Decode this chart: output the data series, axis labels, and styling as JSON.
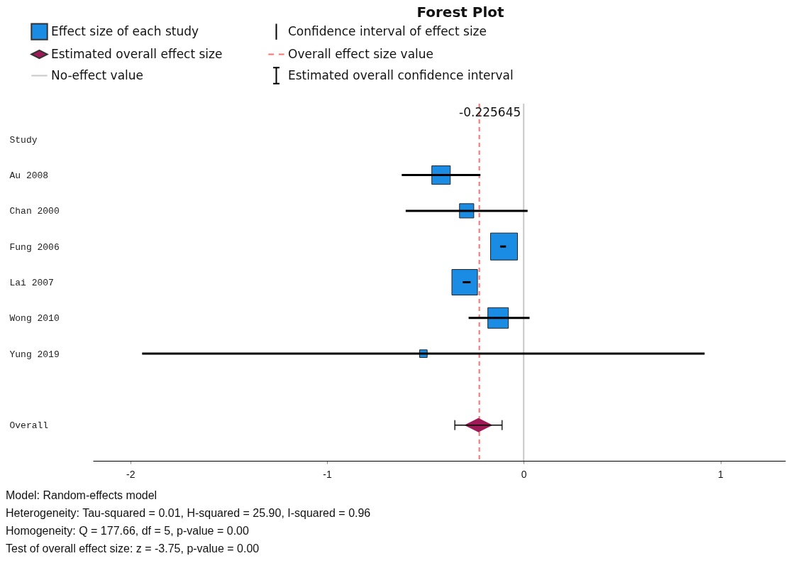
{
  "chart_data": {
    "type": "bubble",
    "title": "Forest Plot",
    "orientation": "horizontal",
    "ylabel": "Study",
    "categories": [
      "Au 2008",
      "Chan 2000",
      "Fung 2006",
      "Lai 2007",
      "Wong 2010",
      "Yung 2019",
      null,
      "Overall"
    ],
    "series": [
      {
        "name": "Effect size of each study",
        "color": "#1a8ce3",
        "marker": "square",
        "values": [
          -0.42,
          -0.29,
          -0.1,
          -0.3,
          -0.13,
          -0.51,
          null,
          null
        ],
        "errors": [
          [
            -0.62,
            -0.22
          ],
          [
            -0.6,
            0.02
          ],
          [
            -0.12,
            -0.09
          ],
          [
            -0.31,
            -0.27
          ],
          [
            -0.28,
            0.03
          ],
          [
            -1.94,
            0.92
          ],
          null,
          null
        ],
        "sizes": [
          0.47,
          0.28,
          1,
          0.9,
          0.58,
          0.08,
          null,
          null
        ]
      },
      {
        "name": "Estimated overall effect size",
        "type": "scatter",
        "color": "#9e1a56",
        "marker": "diamond",
        "values": [
          null,
          null,
          null,
          null,
          null,
          null,
          null,
          -0.23
        ],
        "errors": [
          null,
          null,
          null,
          null,
          null,
          null,
          null,
          [
            -0.35,
            -0.11
          ]
        ]
      }
    ],
    "xlim": [
      -2.19,
      1.33
    ],
    "xticks": [
      -2,
      -1,
      0,
      1
    ],
    "ref_lines": [
      {
        "axis": "x",
        "value": -0.225645,
        "label": "Overall effect size value",
        "color": "#ff7070",
        "line_style": "dashed"
      },
      {
        "axis": "x",
        "value": 0,
        "label": "No-effect value",
        "color": "#c8c8c8",
        "line_style": "solid"
      }
    ],
    "annotations": [
      "Confidence interval of effect size",
      "Estimated overall confidence interval",
      {
        "text": "-0.225645",
        "x": -0.225645
      },
      "Model: Random-effects model",
      "Heterogeneity: Tau-squared = 0.01, H-squared = 25.90, I-squared = 0.96",
      "Homogeneity: Q = 177.66, df = 5, p-value = 0.00",
      "Test of overall effect size: z = -3.75, p-value = 0.00"
    ],
    "legend": "top",
    "grid": false
  }
}
